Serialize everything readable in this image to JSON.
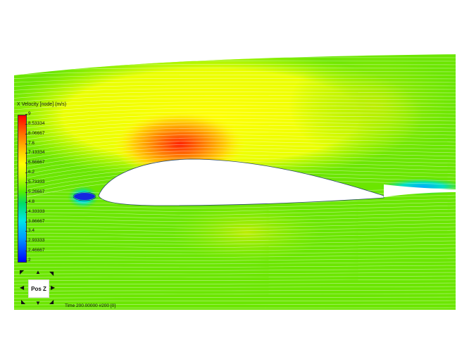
{
  "legend": {
    "title": "X Velocity [node] (m/s)",
    "ticks": [
      "9",
      "8.53334",
      "8.06667",
      "7.6",
      "7.13334",
      "6.66667",
      "6.2",
      "5.73333",
      "5.26667",
      "4.8",
      "4.33333",
      "3.86667",
      "3.4",
      "2.93333",
      "2.46667",
      "2"
    ]
  },
  "orientation": {
    "label": "Pos Z"
  },
  "status": {
    "time": "Time 200.00000   #200 [0]"
  },
  "colors": {
    "high": "#ff0000",
    "mid": "#ffff00",
    "low": "#0000ff",
    "freestream": "#66ee00"
  }
}
